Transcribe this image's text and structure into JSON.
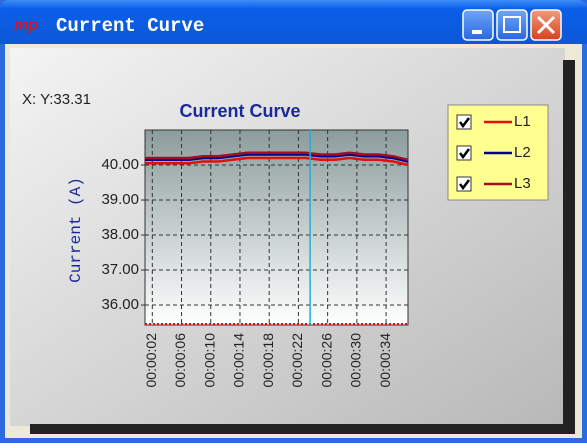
{
  "window": {
    "title": "Current Curve",
    "icon_text": "mp"
  },
  "readout": "X: Y:33.31",
  "chart_data": {
    "type": "line",
    "title": "Current Curve",
    "y_label": "Current (A)",
    "x": [
      1,
      3,
      5,
      7,
      9,
      11,
      13,
      15,
      17,
      19,
      21,
      23,
      25,
      27,
      29,
      31,
      33,
      35,
      37
    ],
    "series": [
      {
        "name": "L1",
        "color": "#e01010",
        "values": [
          40.05,
          40.05,
          40.05,
          40.05,
          40.1,
          40.1,
          40.15,
          40.2,
          40.2,
          40.2,
          40.2,
          40.2,
          40.15,
          40.15,
          40.2,
          40.15,
          40.15,
          40.1,
          40.0
        ]
      },
      {
        "name": "L2",
        "color": "#000090",
        "values": [
          40.15,
          40.15,
          40.15,
          40.15,
          40.2,
          40.2,
          40.25,
          40.3,
          40.3,
          40.3,
          40.3,
          40.3,
          40.25,
          40.25,
          40.3,
          40.25,
          40.25,
          40.2,
          40.1
        ]
      },
      {
        "name": "L3",
        "color": "#a01020",
        "values": [
          40.2,
          40.2,
          40.2,
          40.2,
          40.25,
          40.25,
          40.3,
          40.35,
          40.35,
          40.35,
          40.35,
          40.35,
          40.3,
          40.3,
          40.35,
          40.3,
          40.3,
          40.25,
          40.15
        ]
      }
    ],
    "xlim": [
      1,
      37
    ],
    "xticks": [
      {
        "value": 2,
        "label": "00:00:02"
      },
      {
        "value": 6,
        "label": "00:00:06"
      },
      {
        "value": 10,
        "label": "00:00:10"
      },
      {
        "value": 14,
        "label": "00:00:14"
      },
      {
        "value": 18,
        "label": "00:00:18"
      },
      {
        "value": 22,
        "label": "00:00:22"
      },
      {
        "value": 26,
        "label": "00:00:26"
      },
      {
        "value": 30,
        "label": "00:00:30"
      },
      {
        "value": 34,
        "label": "00:00:34"
      }
    ],
    "ylim": [
      35.43,
      41
    ],
    "yticks": [
      {
        "value": 36,
        "label": "36.00"
      },
      {
        "value": 37,
        "label": "37.00"
      },
      {
        "value": 38,
        "label": "38.00"
      },
      {
        "value": 39,
        "label": "39.00"
      },
      {
        "value": 40,
        "label": "40.00"
      }
    ],
    "cursor_x": 23.6,
    "grid": true
  }
}
